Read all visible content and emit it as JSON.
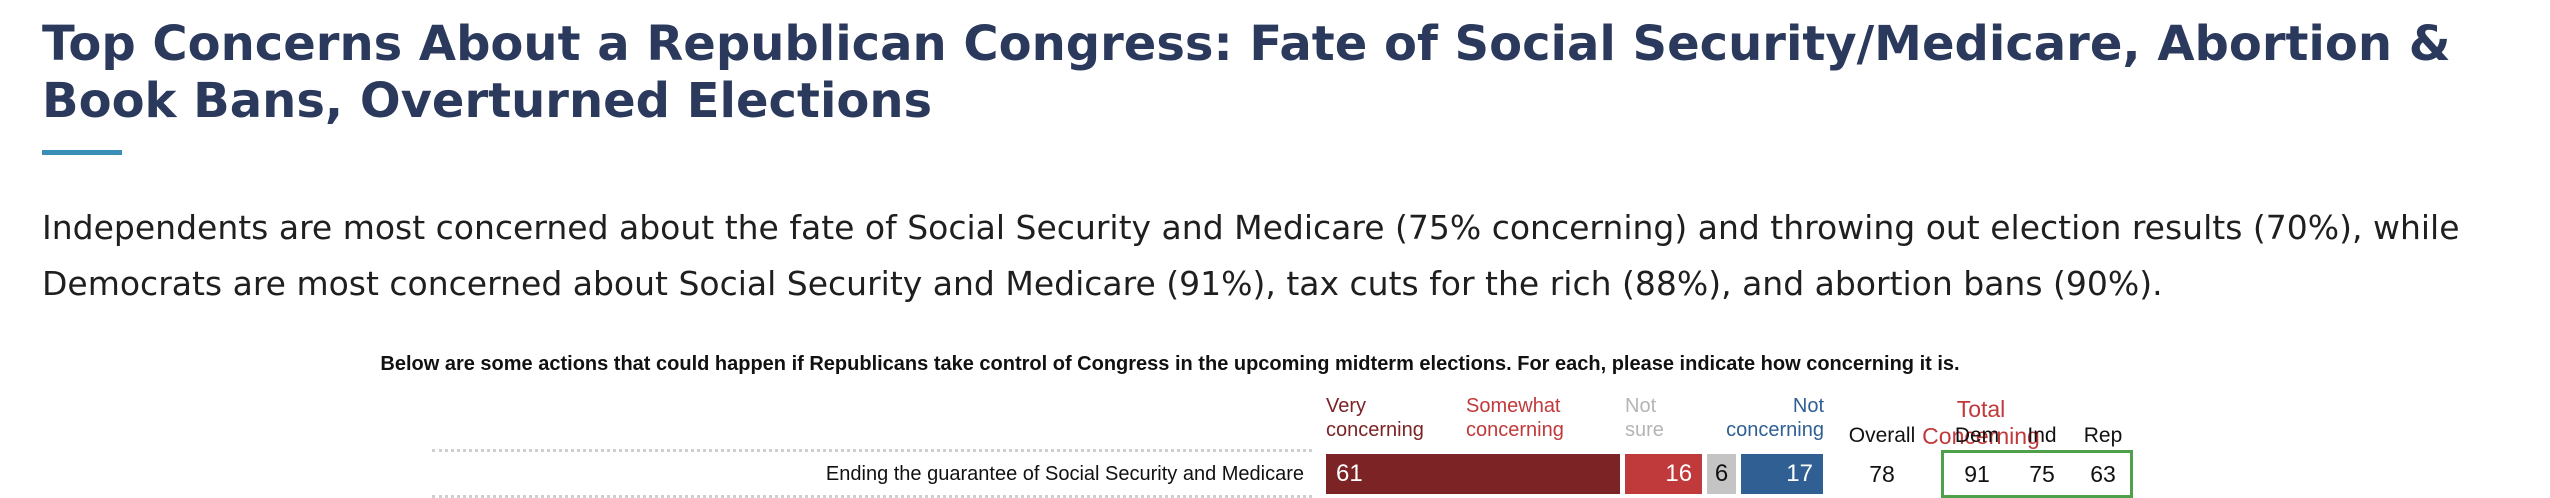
{
  "article": {
    "headline": "Top Concerns About a Republican Congress: Fate of Social Security/Medicare, Abortion & Book Bans, Overturned Elections",
    "intro": "Independents are most concerned about the fate of Social Security and Medicare (75% concerning) and throwing out election results (70%), while Democrats are most concerned about Social Security and Medicare (91%), tax cuts for the rich (88%), and abortion bans (90%)."
  },
  "colors": {
    "very": "#7b2325",
    "somewhat": "#c0393b",
    "not_sure": "#c4c4c4",
    "not": "#2f5f93",
    "headline": "#2b3a5c",
    "accent_rule": "#3a8fb7",
    "highlight_box": "#4fa04a"
  },
  "chart_data": {
    "type": "bar",
    "stacked": true,
    "orientation": "horizontal",
    "title": "Below are some actions that could happen if Republicans take control of Congress in the upcoming midterm elections. For each, please indicate how concerning it is.",
    "legend": {
      "very": [
        "Very",
        "concerning"
      ],
      "somewhat": [
        "Somewhat",
        "concerning"
      ],
      "not_sure": [
        "Not",
        "sure"
      ],
      "not": [
        "Not",
        "concerning"
      ]
    },
    "categories": [
      "Ending the guarantee of Social Security and Medicare"
    ],
    "series": [
      {
        "name": "Very concerning",
        "values": [
          61
        ]
      },
      {
        "name": "Somewhat concerning",
        "values": [
          16
        ]
      },
      {
        "name": "Not sure",
        "values": [
          6
        ]
      },
      {
        "name": "Not concerning",
        "values": [
          17
        ]
      }
    ],
    "total_concerning": {
      "header": "Total Concerning",
      "columns": [
        "Overall",
        "Dem",
        "Ind",
        "Rep"
      ],
      "rows": [
        [
          78,
          91,
          75,
          63
        ]
      ]
    }
  }
}
